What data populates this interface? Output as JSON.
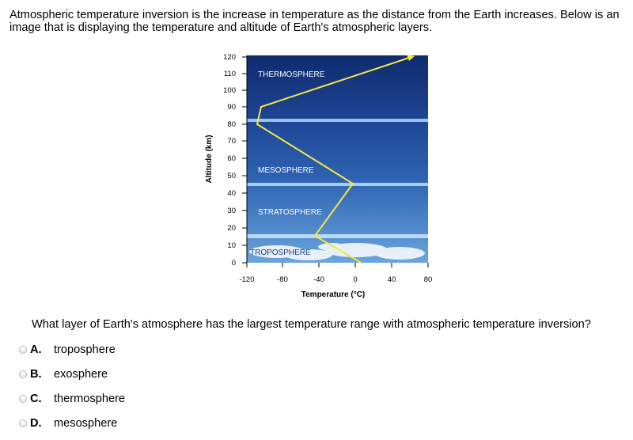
{
  "intro_text": "Atmospheric temperature inversion is the increase in temperature as the distance from the Earth increases. Below is an image that is displaying the temperature and altitude of Earth's atmospheric layers.",
  "figure": {
    "y_axis_label": "Altitude (km)",
    "x_axis_label": "Temperature (°C)",
    "y_ticks": [
      "120",
      "110",
      "100",
      "90",
      "80",
      "70",
      "60",
      "50",
      "40",
      "30",
      "20",
      "10",
      "0"
    ],
    "x_ticks": [
      "-120",
      "-80",
      "-40",
      "0",
      "40",
      "80"
    ],
    "layers": [
      {
        "label": "THERMOSPHERE",
        "color": "#1b3b86"
      },
      {
        "label": "MESOSPHERE",
        "color": "#2e5fb0"
      },
      {
        "label": "STRATOSPHERE",
        "color": "#3f77c4"
      },
      {
        "label": "TROPOSPHERE",
        "color": "#5c97d6"
      }
    ],
    "curve_color": "#f5e642"
  },
  "question": "What layer of Earth's atmosphere has the largest temperature range with atmospheric temperature inversion?",
  "options": [
    {
      "letter": "A.",
      "text": "troposphere"
    },
    {
      "letter": "B.",
      "text": "exosphere"
    },
    {
      "letter": "C.",
      "text": "thermosphere"
    },
    {
      "letter": "D.",
      "text": "mesosphere"
    }
  ]
}
